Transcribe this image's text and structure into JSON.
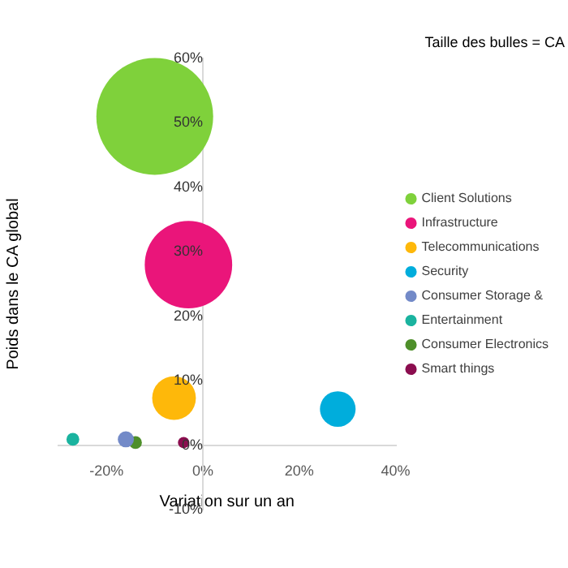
{
  "chart_data": {
    "type": "bubble",
    "title": "Taille des bulles = CA",
    "xlabel": "Variation sur un an",
    "ylabel": "Poids dans le CA global",
    "xlim": [
      -30,
      40
    ],
    "xticks": [
      {
        "value": -20,
        "label": "-20%"
      },
      {
        "value": 0,
        "label": "0%"
      },
      {
        "value": 20,
        "label": "20%"
      },
      {
        "value": 40,
        "label": "40%"
      }
    ],
    "ylim": [
      -10,
      60
    ],
    "yticks": [
      {
        "value": -10,
        "label": "-10%"
      },
      {
        "value": 0,
        "label": "0%"
      },
      {
        "value": 10,
        "label": "10%"
      },
      {
        "value": 20,
        "label": "20%"
      },
      {
        "value": 30,
        "label": "30%"
      },
      {
        "value": 40,
        "label": "40%"
      },
      {
        "value": 50,
        "label": "50%"
      },
      {
        "value": 60,
        "label": "60%"
      }
    ],
    "grid": false,
    "legend": "right",
    "marker": "circle",
    "series": [
      {
        "name": "Client Solutions",
        "color": "#7fd13b",
        "x": [
          -10
        ],
        "values": [
          51
        ],
        "sizes": [
          1
        ]
      },
      {
        "name": "Infrastructure",
        "color": "#ea157a",
        "x": [
          -3
        ],
        "values": [
          28
        ],
        "sizes": [
          0.56
        ]
      },
      {
        "name": "Telecommunications",
        "color": "#feb80a",
        "x": [
          -6
        ],
        "values": [
          7.3
        ],
        "sizes": [
          0.14
        ]
      },
      {
        "name": "Security",
        "color": "#00addc",
        "x": [
          28
        ],
        "values": [
          5.6
        ],
        "sizes": [
          0.093
        ]
      },
      {
        "name": "Consumer Storage &",
        "color": "#738ac8",
        "x": [
          -16
        ],
        "values": [
          0.9
        ],
        "sizes": [
          0.019
        ]
      },
      {
        "name": "Entertainment",
        "color": "#1ab39f",
        "x": [
          -27
        ],
        "values": [
          0.9
        ],
        "sizes": [
          0.012
        ]
      },
      {
        "name": "Consumer Electronics",
        "color": "#4e8f2a",
        "x": [
          -14
        ],
        "values": [
          0.4
        ],
        "sizes": [
          0.012
        ]
      },
      {
        "name": "Smart things",
        "color": "#8b0d4f",
        "x": [
          -4
        ],
        "values": [
          0.4
        ],
        "sizes": [
          0.0095
        ]
      }
    ]
  }
}
